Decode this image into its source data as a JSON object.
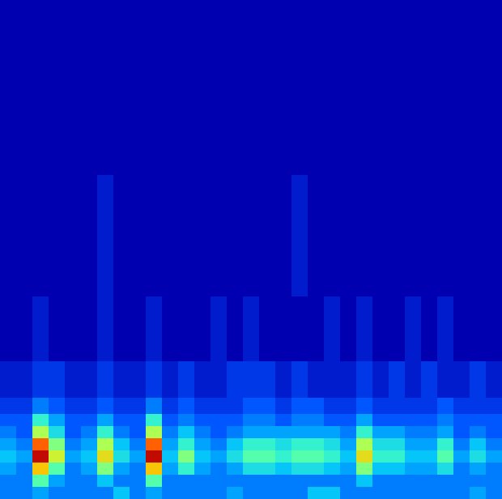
{
  "chart_data": {
    "type": "heatmap",
    "tick_labels": false,
    "xlim": [
      0,
      620
    ],
    "ylim": [
      0,
      616
    ],
    "zlim": [
      0,
      10
    ],
    "x_edges": [
      0,
      20,
      40,
      60,
      80,
      100,
      120,
      140,
      160,
      180,
      200,
      220,
      240,
      260,
      280,
      300,
      320,
      340,
      360,
      380,
      400,
      420,
      440,
      460,
      480,
      500,
      520,
      540,
      560,
      580,
      600,
      620
    ],
    "y_edges": [
      0,
      15,
      30,
      45,
      60,
      75,
      90,
      105,
      125,
      170,
      250,
      400,
      616
    ],
    "z": [
      [
        2,
        2,
        2.5,
        2,
        2,
        2,
        2,
        3,
        2,
        2.5,
        2,
        2,
        2,
        2,
        2.5,
        2,
        2,
        2,
        2,
        3,
        3,
        2,
        2,
        2,
        2,
        2,
        2,
        2,
        2,
        2.5,
        2
      ],
      [
        2,
        2,
        4.5,
        2.5,
        2,
        2,
        3,
        2,
        2,
        4.5,
        2,
        2,
        2,
        2,
        2,
        2,
        2,
        2,
        2,
        2,
        2,
        2,
        3,
        2,
        2,
        2,
        2,
        2,
        2,
        2,
        2
      ],
      [
        2.5,
        2,
        7,
        4.5,
        2,
        2.5,
        5,
        2.5,
        2,
        7,
        2.5,
        4,
        2.5,
        2,
        2.5,
        3.5,
        3.5,
        3,
        3.5,
        3.5,
        3,
        2.5,
        5,
        3,
        3,
        2.5,
        2.5,
        3.5,
        2,
        2.5,
        2
      ],
      [
        3,
        2.5,
        9.5,
        6,
        2.5,
        3,
        6.5,
        3.5,
        2.5,
        9.5,
        3,
        5,
        3,
        2.5,
        3.5,
        4.5,
        4.5,
        4,
        4.5,
        4.5,
        4,
        3,
        6.5,
        4,
        4,
        3,
        3,
        4.5,
        2.5,
        3.5,
        2.5
      ],
      [
        2.5,
        2,
        8,
        5,
        2,
        2.5,
        5.5,
        3,
        2,
        8,
        2.5,
        4,
        2.5,
        2,
        3,
        4,
        4,
        3.5,
        4,
        4,
        3.5,
        2.5,
        5.5,
        3.5,
        3.5,
        2.5,
        2.5,
        4,
        2,
        3,
        2
      ],
      [
        2,
        1.5,
        5.5,
        3.5,
        1.5,
        2,
        4,
        2,
        1.5,
        5.5,
        2,
        3,
        2,
        1.5,
        2,
        2.5,
        2.5,
        2.5,
        2.5,
        2.5,
        2.5,
        2,
        4,
        2.5,
        2.5,
        2,
        2,
        2.5,
        1.5,
        2,
        1.5
      ],
      [
        1.5,
        1.5,
        4,
        2.5,
        1.5,
        1.5,
        2.5,
        1.5,
        1.5,
        4,
        1.5,
        2,
        1.5,
        1.5,
        1.5,
        2,
        2,
        1.5,
        2,
        2,
        1.5,
        1.5,
        2.5,
        1.5,
        1.5,
        1.5,
        1.5,
        2,
        1.5,
        1.5,
        1.5
      ],
      [
        1,
        1,
        2,
        1.5,
        1,
        1,
        1.5,
        1,
        1,
        2,
        1,
        1.5,
        1,
        1,
        1,
        1.5,
        1.5,
        1,
        1.5,
        1.5,
        1,
        1,
        1.5,
        1,
        1,
        1,
        1,
        1.5,
        1,
        1,
        1
      ],
      [
        0.5,
        0.5,
        1,
        1,
        0.5,
        0.5,
        1,
        0.5,
        0.5,
        1,
        0.5,
        1,
        0.5,
        0.5,
        1,
        1,
        1,
        0.5,
        1,
        0.5,
        0.5,
        0.5,
        1,
        0.5,
        1,
        0.5,
        1,
        0.5,
        0.5,
        1,
        0.5
      ],
      [
        0,
        0,
        0.5,
        0,
        0,
        0,
        0.5,
        0,
        0,
        0.5,
        0,
        0,
        0,
        0.5,
        0,
        0.5,
        0,
        0,
        0,
        0,
        0.5,
        0,
        0.5,
        0,
        0,
        0.5,
        0,
        0.5,
        0,
        0,
        0
      ],
      [
        0,
        0,
        0,
        0,
        0,
        0,
        0.5,
        0,
        0,
        0,
        0,
        0,
        0,
        0,
        0,
        0,
        0,
        0,
        0.5,
        0,
        0,
        0,
        0,
        0,
        0,
        0,
        0,
        0,
        0,
        0,
        0
      ],
      [
        0,
        0,
        0,
        0,
        0,
        0,
        0,
        0,
        0,
        0,
        0,
        0,
        0,
        0,
        0,
        0,
        0,
        0,
        0,
        0,
        0,
        0,
        0,
        0,
        0,
        0,
        0,
        0,
        0,
        0,
        0
      ]
    ]
  }
}
